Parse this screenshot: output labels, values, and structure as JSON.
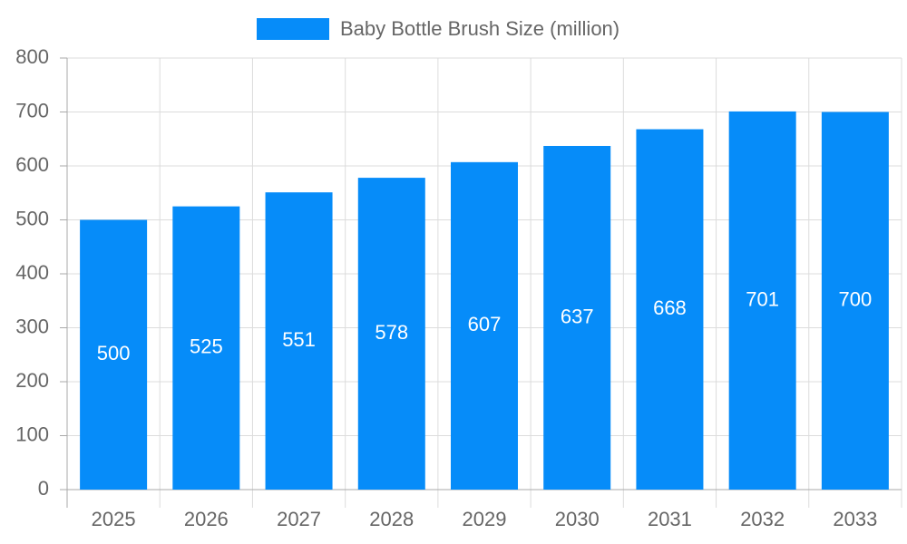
{
  "chart_data": {
    "type": "bar",
    "categories": [
      "2025",
      "2026",
      "2027",
      "2028",
      "2029",
      "2030",
      "2031",
      "2032",
      "2033"
    ],
    "series": [
      {
        "name": "Baby Bottle Brush Size (million)",
        "color": "#068cf9",
        "values": [
          500,
          525,
          551,
          578,
          607,
          637,
          668,
          701,
          700
        ]
      }
    ],
    "ylim": [
      0,
      800
    ],
    "yticks": [
      0,
      100,
      200,
      300,
      400,
      500,
      600,
      700,
      800
    ],
    "grid": true,
    "legend": "top"
  }
}
